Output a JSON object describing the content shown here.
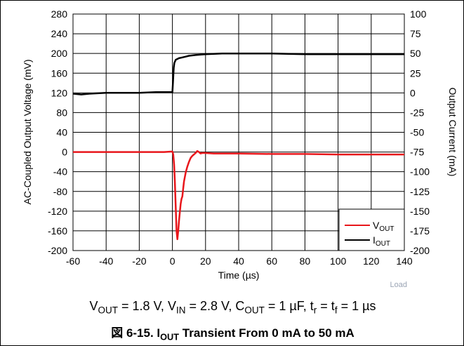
{
  "chart_data": {
    "type": "line",
    "title": "",
    "xlabel": "Time (µs)",
    "ylabel_left": "AC-Coupled Output Voltage (mV)",
    "ylabel_right": "Output Current (mA)",
    "xlim": [
      -60,
      140
    ],
    "ylim_left": [
      -200,
      280
    ],
    "ylim_right": [
      -200,
      100
    ],
    "x_ticks": [
      "-60",
      "-40",
      "-20",
      "0",
      "20",
      "40",
      "60",
      "80",
      "100",
      "120",
      "140"
    ],
    "y_left_ticks": [
      "280",
      "240",
      "200",
      "160",
      "120",
      "80",
      "40",
      "0",
      "-40",
      "-80",
      "-120",
      "-160",
      "-200"
    ],
    "y_right_ticks": [
      "100",
      "75",
      "50",
      "25",
      "0",
      "-25",
      "-50",
      "-75",
      "-100",
      "-125",
      "-150",
      "-175",
      "-200"
    ],
    "grid": true,
    "legend_position": "bottom-right",
    "series": [
      {
        "name": "VOUT",
        "axis": "left",
        "color": "#e8161b",
        "x": [
          -60,
          -40,
          -20,
          -5,
          0,
          0.5,
          1,
          1.5,
          2,
          2.5,
          3,
          3.5,
          4,
          4.5,
          5,
          5.5,
          6,
          6.5,
          7,
          8,
          9,
          10,
          11,
          12,
          13,
          14,
          15,
          16,
          17,
          18,
          20,
          25,
          30,
          40,
          60,
          80,
          100,
          120,
          140
        ],
        "y": [
          0,
          0,
          0,
          0,
          1,
          -5,
          -25,
          -60,
          -110,
          -160,
          -177,
          -160,
          -140,
          -122,
          -105,
          -95,
          -90,
          -75,
          -60,
          -42,
          -30,
          -20,
          -12,
          -8,
          -5,
          -2,
          2,
          0,
          -3,
          -2,
          -2,
          -3,
          -3,
          -3,
          -4,
          -4,
          -5,
          -5,
          -5
        ]
      },
      {
        "name": "IOUT",
        "axis": "right",
        "color": "#000000",
        "x": [
          -60,
          -55,
          -50,
          -40,
          -30,
          -20,
          -10,
          -2,
          0,
          0.4,
          0.8,
          1.2,
          1.6,
          2,
          3,
          4,
          6,
          8,
          10,
          14,
          20,
          30,
          40,
          60,
          80,
          100,
          120,
          140
        ],
        "y": [
          -1,
          -2,
          -1,
          0,
          0,
          0,
          1,
          1,
          1,
          15,
          32,
          38,
          40,
          42,
          43,
          44,
          45,
          46,
          47,
          48,
          49,
          50,
          50,
          50,
          49,
          49,
          49,
          49
        ]
      }
    ],
    "legend": [
      {
        "main": "V",
        "sub": "OUT"
      },
      {
        "main": "I",
        "sub": "OUT"
      }
    ]
  },
  "conditions": {
    "vout": "V",
    "vout_sub": "OUT",
    "vout_val": " = 1.8 V, ",
    "vin": "V",
    "vin_sub": "IN",
    "vin_val": " = 2.8 V, ",
    "cout": "C",
    "cout_sub": "OUT",
    "cout_val": " = 1 µF, ",
    "tr": "t",
    "tr_sub": "r",
    "tr_val": " = ",
    "tf": "t",
    "tf_sub": "f",
    "tf_val": " = 1 µs"
  },
  "watermark": "Load",
  "caption": {
    "prefix": "図 6-15. I",
    "sub": "OUT",
    "suffix": " Transient From 0 mA to 50 mA"
  }
}
